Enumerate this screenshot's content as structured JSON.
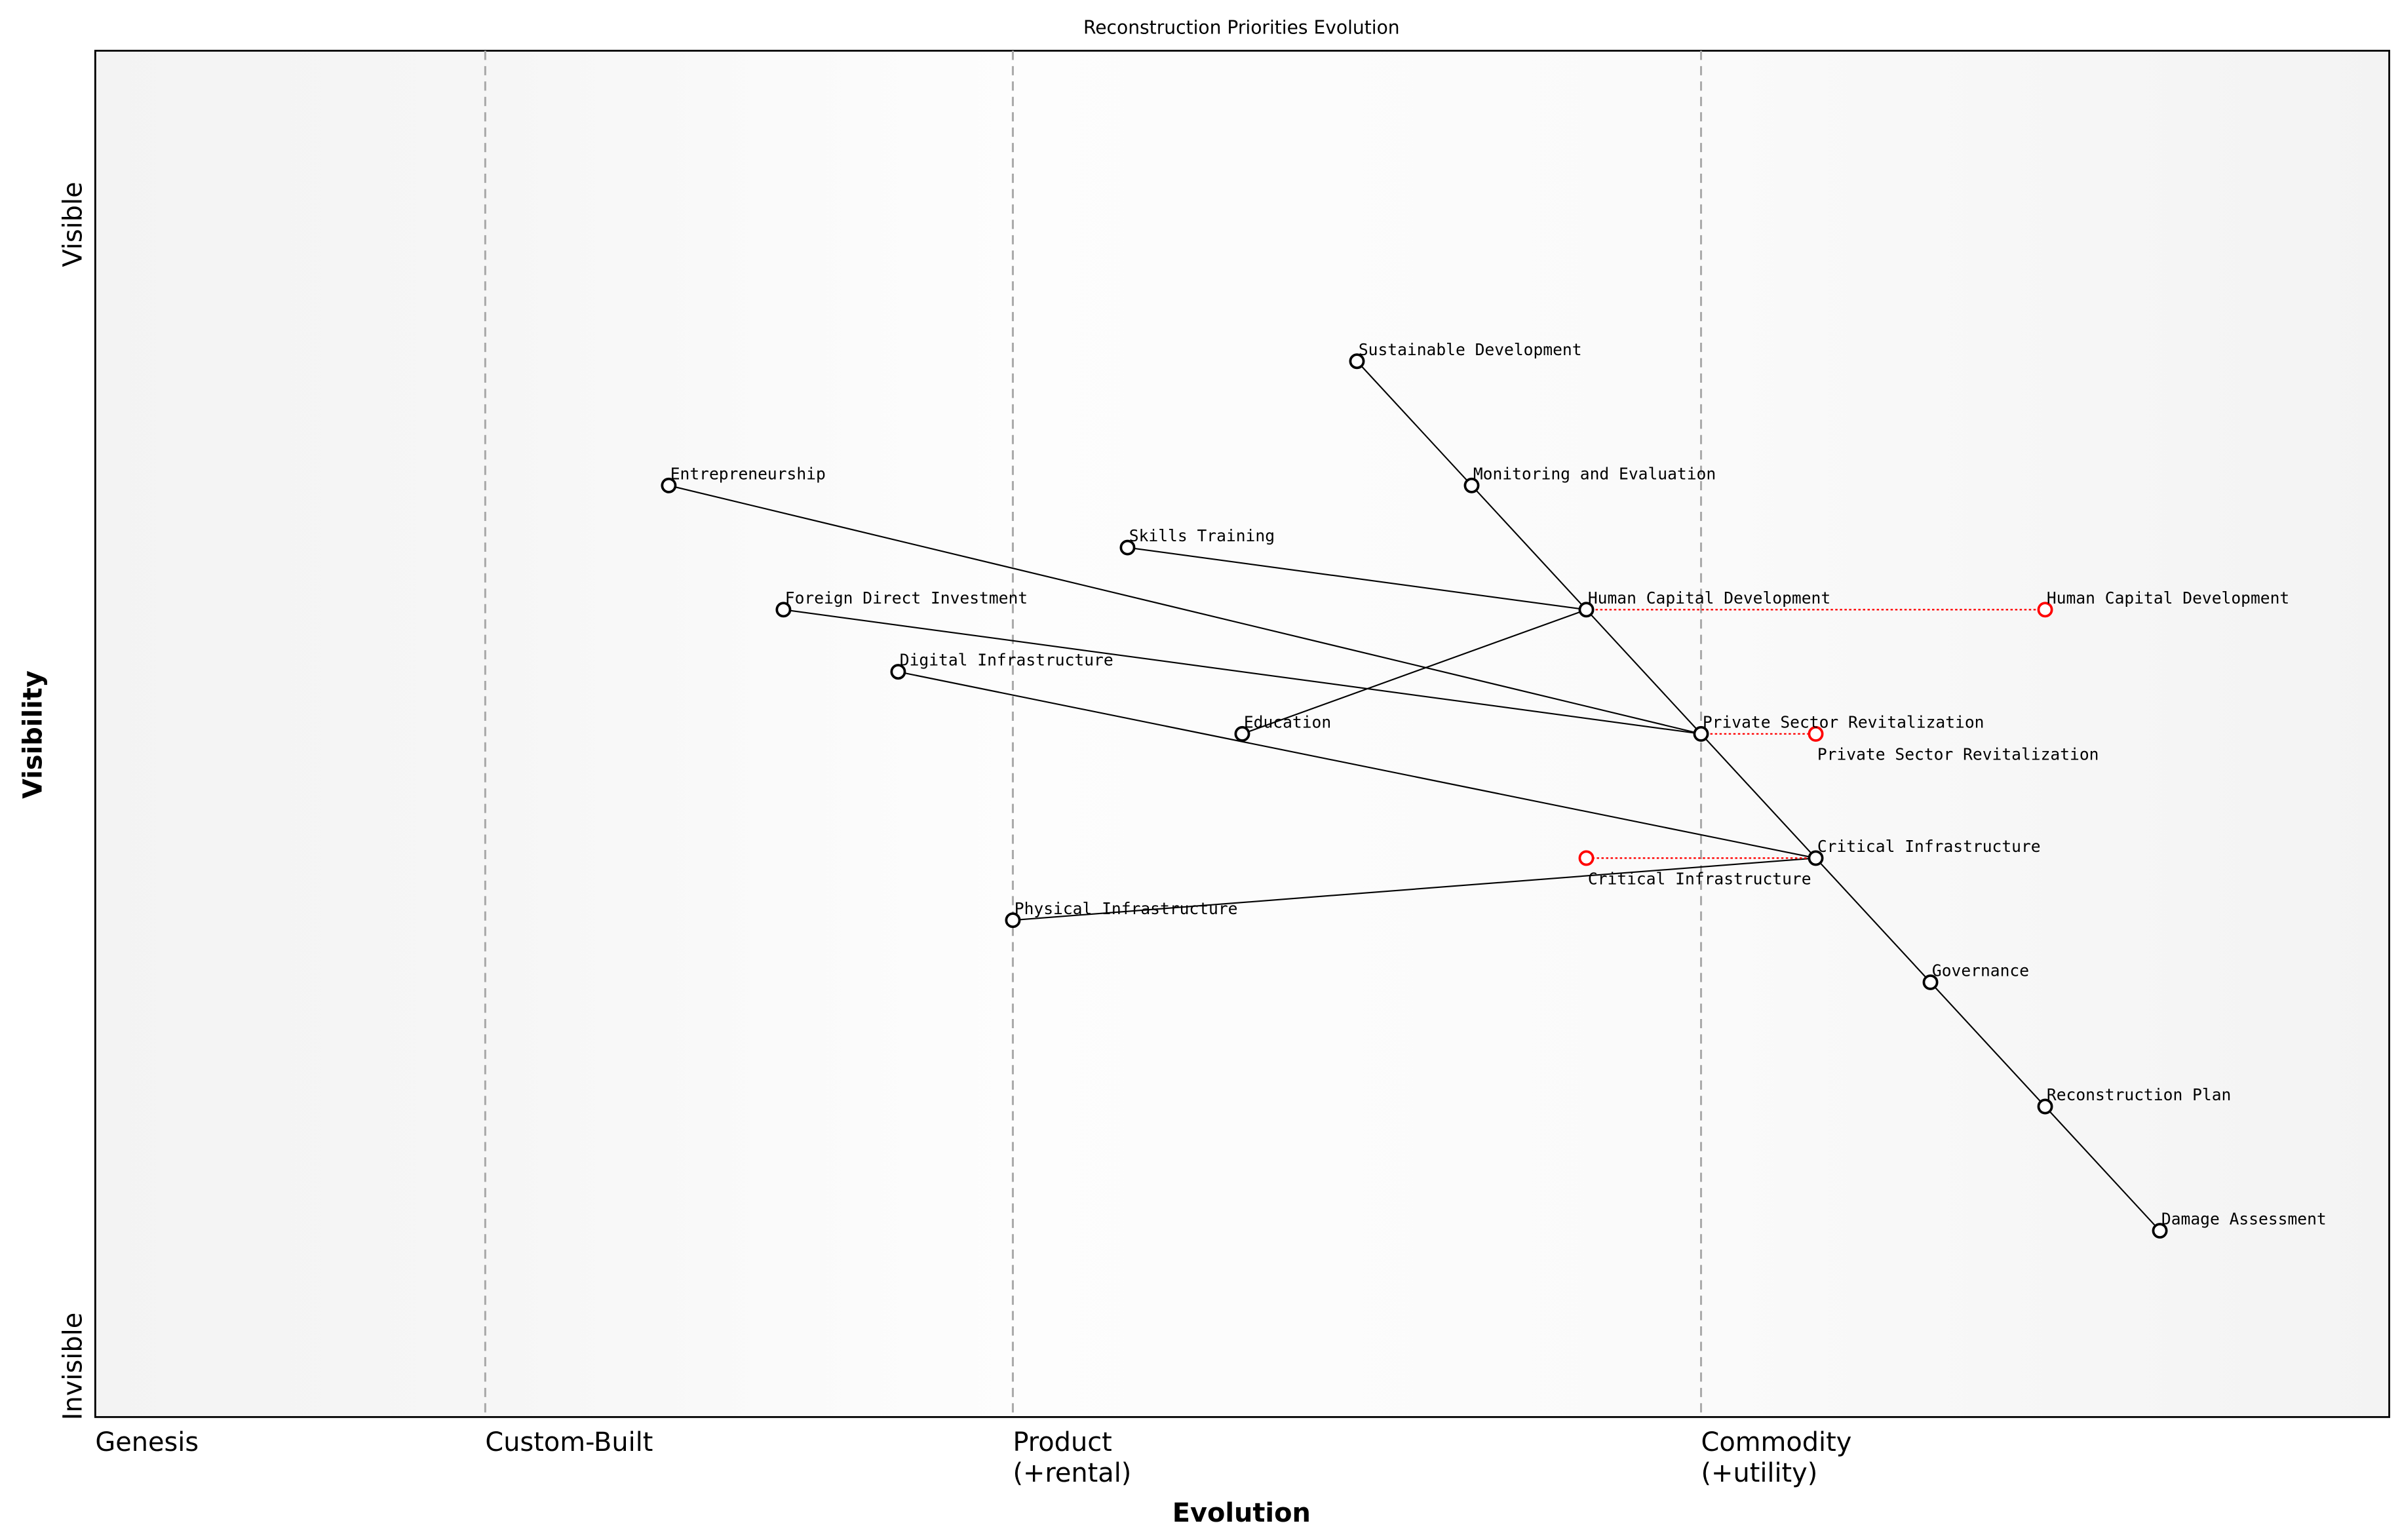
{
  "chart_data": {
    "type": "scatter",
    "title": "Reconstruction Priorities Evolution",
    "xlabel": "Evolution",
    "ylabel": "Visibility",
    "xlim": [
      0,
      1
    ],
    "ylim": [
      -0.05,
      1.05
    ],
    "grid": false,
    "y_axis_labels": {
      "top": "Visible",
      "bottom": "Invisible"
    },
    "stages": [
      {
        "label": "Genesis",
        "x": 0
      },
      {
        "label": "Custom-Built",
        "x": 0.17
      },
      {
        "label": "Product\n(+rental)",
        "x": 0.4
      },
      {
        "label": "Commodity\n(+utility)",
        "x": 0.7
      }
    ],
    "components": [
      {
        "name": "Sustainable Development",
        "x": 0.55,
        "y": 0.8
      },
      {
        "name": "Monitoring and Evaluation",
        "x": 0.6,
        "y": 0.7
      },
      {
        "name": "Human Capital Development",
        "x": 0.65,
        "y": 0.6
      },
      {
        "name": "Private Sector Revitalization",
        "x": 0.7,
        "y": 0.5
      },
      {
        "name": "Critical Infrastructure",
        "x": 0.75,
        "y": 0.4
      },
      {
        "name": "Governance",
        "x": 0.8,
        "y": 0.3
      },
      {
        "name": "Reconstruction Plan",
        "x": 0.85,
        "y": 0.2
      },
      {
        "name": "Damage Assessment",
        "x": 0.9,
        "y": 0.1
      },
      {
        "name": "Entrepreneurship",
        "x": 0.25,
        "y": 0.7
      },
      {
        "name": "Skills Training",
        "x": 0.45,
        "y": 0.65
      },
      {
        "name": "Foreign Direct Investment",
        "x": 0.3,
        "y": 0.6
      },
      {
        "name": "Digital Infrastructure",
        "x": 0.35,
        "y": 0.55
      },
      {
        "name": "Education",
        "x": 0.5,
        "y": 0.5
      },
      {
        "name": "Physical Infrastructure",
        "x": 0.4,
        "y": 0.35
      }
    ],
    "links": [
      [
        "Sustainable Development",
        "Monitoring and Evaluation"
      ],
      [
        "Monitoring and Evaluation",
        "Human Capital Development"
      ],
      [
        "Human Capital Development",
        "Private Sector Revitalization"
      ],
      [
        "Private Sector Revitalization",
        "Critical Infrastructure"
      ],
      [
        "Critical Infrastructure",
        "Governance"
      ],
      [
        "Governance",
        "Reconstruction Plan"
      ],
      [
        "Reconstruction Plan",
        "Damage Assessment"
      ],
      [
        "Skills Training",
        "Human Capital Development"
      ],
      [
        "Education",
        "Human Capital Development"
      ],
      [
        "Entrepreneurship",
        "Private Sector Revitalization"
      ],
      [
        "Foreign Direct Investment",
        "Private Sector Revitalization"
      ],
      [
        "Digital Infrastructure",
        "Critical Infrastructure"
      ],
      [
        "Physical Infrastructure",
        "Critical Infrastructure"
      ]
    ],
    "evolutions": [
      {
        "name": "Human Capital Development",
        "from_x": 0.65,
        "to_x": 0.85,
        "y": 0.6
      },
      {
        "name": "Private Sector Revitalization",
        "from_x": 0.7,
        "to_x": 0.75,
        "y": 0.5
      },
      {
        "name": "Critical Infrastructure",
        "from_x": 0.75,
        "to_x": 0.65,
        "y": 0.4
      }
    ],
    "colors": {
      "component": "#000000",
      "evolution": "#ff0000",
      "stage_line": "#aaaaaa"
    }
  }
}
